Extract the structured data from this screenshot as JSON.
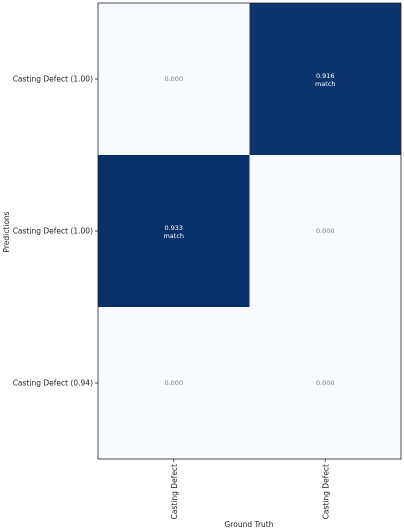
{
  "chart_data": {
    "type": "heatmap",
    "title": "",
    "xlabel": "Ground Truth",
    "ylabel": "Predictions",
    "x_categories": [
      "Casting Defect",
      "Casting Defect"
    ],
    "y_categories": [
      "Casting Defect (1.00)",
      "Casting Defect (1.00)",
      "Casting Defect (0.94)"
    ],
    "values": [
      [
        0.0,
        0.916
      ],
      [
        0.933,
        0.0
      ],
      [
        0.0,
        0.0
      ]
    ],
    "value_labels": [
      [
        "0.000",
        "0.916"
      ],
      [
        "0.933",
        "0.000"
      ],
      [
        "0.000",
        "0.000"
      ]
    ],
    "match_text": "match",
    "match_cells": [
      [
        0,
        1
      ],
      [
        1,
        0
      ]
    ],
    "colormap": "Blues",
    "colors": {
      "low": "#f7fbff",
      "high": "#08306b",
      "text_low": "#808080",
      "text_high": "#ffffff",
      "frame": "#222222"
    },
    "grid": false,
    "legend": "none"
  }
}
